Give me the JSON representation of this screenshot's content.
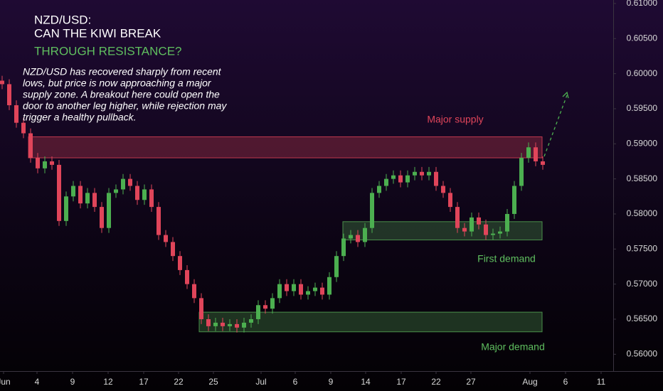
{
  "chart_data": {
    "type": "candlestick",
    "title": [
      "NZD/USD:",
      "CAN THE KIWI BREAK",
      "THROUGH RESISTANCE?"
    ],
    "description": [
      "NZD/USD has recovered sharply from recent",
      "lows, but price is now approaching a major",
      "supply zone. A breakout here could open the",
      "door to another leg higher, while rejection may",
      "trigger a healthy pullback."
    ],
    "up_color": "#4caf50",
    "down_color": "#e0455a",
    "open": [
      0.599,
      0.5985,
      0.5955,
      0.593,
      0.5915,
      0.588,
      0.5865,
      0.5875,
      0.587,
      0.579,
      0.5825,
      0.584,
      0.5815,
      0.583,
      0.581,
      0.578,
      0.583,
      0.5835,
      0.585,
      0.584,
      0.582,
      0.5835,
      0.581,
      0.577,
      0.576,
      0.574,
      0.572,
      0.57,
      0.568,
      0.565,
      0.564,
      0.5645,
      0.564,
      0.5643,
      0.5638,
      0.5645,
      0.565,
      0.567,
      0.5665,
      0.568,
      0.57,
      0.569,
      0.57,
      0.5685,
      0.569,
      0.5695,
      0.5685,
      0.571,
      0.574,
      0.5765,
      0.577,
      0.576,
      0.578,
      0.583,
      0.584,
      0.585,
      0.5855,
      0.5845,
      0.5855,
      0.586,
      0.5855,
      0.586,
      0.584,
      0.583,
      0.581,
      0.578,
      0.5775,
      0.5795,
      0.5785,
      0.577,
      0.5772,
      0.5775,
      0.58,
      0.584,
      0.588,
      0.5895,
      0.5875
    ],
    "high": [
      0.5997,
      0.5992,
      0.5962,
      0.5937,
      0.5922,
      0.5887,
      0.5882,
      0.5882,
      0.5877,
      0.5832,
      0.5847,
      0.5847,
      0.5837,
      0.5837,
      0.5817,
      0.5837,
      0.5842,
      0.5857,
      0.5857,
      0.5847,
      0.5842,
      0.5842,
      0.5817,
      0.5777,
      0.5767,
      0.5747,
      0.5727,
      0.5707,
      0.5687,
      0.5657,
      0.5652,
      0.5652,
      0.565,
      0.565,
      0.5652,
      0.5657,
      0.5677,
      0.5677,
      0.5687,
      0.5707,
      0.5707,
      0.5707,
      0.5707,
      0.5697,
      0.5702,
      0.5702,
      0.5717,
      0.5747,
      0.5772,
      0.5777,
      0.5777,
      0.5787,
      0.5837,
      0.5847,
      0.5857,
      0.5862,
      0.5862,
      0.5862,
      0.5867,
      0.5867,
      0.5867,
      0.5867,
      0.5847,
      0.5837,
      0.5817,
      0.5787,
      0.5802,
      0.5802,
      0.5792,
      0.5779,
      0.5782,
      0.5807,
      0.5847,
      0.5887,
      0.5902,
      0.5902,
      0.5882
    ],
    "low": [
      0.5978,
      0.5948,
      0.5923,
      0.5908,
      0.5873,
      0.5858,
      0.5858,
      0.5863,
      0.5783,
      0.5783,
      0.5818,
      0.5808,
      0.5808,
      0.5803,
      0.5773,
      0.5773,
      0.5823,
      0.5828,
      0.5833,
      0.5813,
      0.5813,
      0.5803,
      0.5763,
      0.5753,
      0.5733,
      0.5713,
      0.5693,
      0.5673,
      0.5643,
      0.5633,
      0.5633,
      0.5633,
      0.5633,
      0.5631,
      0.5631,
      0.5638,
      0.5643,
      0.5658,
      0.5658,
      0.5673,
      0.5683,
      0.5683,
      0.5678,
      0.5678,
      0.5683,
      0.5678,
      0.5678,
      0.5703,
      0.5733,
      0.5758,
      0.5753,
      0.5753,
      0.5773,
      0.5823,
      0.5833,
      0.5843,
      0.5838,
      0.5838,
      0.5848,
      0.5848,
      0.5848,
      0.5833,
      0.5823,
      0.5803,
      0.5773,
      0.5768,
      0.5768,
      0.5778,
      0.5763,
      0.5763,
      0.5765,
      0.5768,
      0.5793,
      0.5833,
      0.5873,
      0.5868,
      0.5863
    ],
    "close": [
      0.5985,
      0.5955,
      0.593,
      0.5915,
      0.588,
      0.5865,
      0.5875,
      0.587,
      0.579,
      0.5825,
      0.584,
      0.5815,
      0.583,
      0.581,
      0.578,
      0.583,
      0.5835,
      0.585,
      0.584,
      0.582,
      0.5835,
      0.581,
      0.577,
      0.576,
      0.574,
      0.572,
      0.57,
      0.568,
      0.565,
      0.564,
      0.5645,
      0.564,
      0.5643,
      0.5638,
      0.5645,
      0.565,
      0.567,
      0.5665,
      0.568,
      0.57,
      0.569,
      0.57,
      0.5685,
      0.569,
      0.5695,
      0.5685,
      0.571,
      0.574,
      0.5765,
      0.577,
      0.576,
      0.578,
      0.583,
      0.584,
      0.585,
      0.5855,
      0.5845,
      0.5855,
      0.586,
      0.5855,
      0.586,
      0.584,
      0.583,
      0.581,
      0.578,
      0.5775,
      0.5795,
      0.5785,
      0.577,
      0.5772,
      0.5775,
      0.58,
      0.584,
      0.588,
      0.5895,
      0.5875,
      0.587
    ],
    "zones": [
      {
        "label": "Major supply",
        "low": 0.588,
        "high": 0.591,
        "x_start": 3.7,
        "x_end": 75.9,
        "color": "#c0394f"
      },
      {
        "label": "First demand",
        "low": 0.5763,
        "high": 0.5789,
        "x_start": 47.9,
        "x_end": 75.9,
        "color": "#4a8f4a"
      },
      {
        "label": "Major demand",
        "low": 0.5632,
        "high": 0.566,
        "x_start": 27.7,
        "x_end": 75.9,
        "color": "#4a8f4a"
      }
    ],
    "ylim": [
      0.5576,
      0.6105
    ],
    "yticks": [
      {
        "value": 0.56,
        "label": "0.56000"
      },
      {
        "value": 0.565,
        "label": "0.56500"
      },
      {
        "value": 0.57,
        "label": "0.57000"
      },
      {
        "value": 0.575,
        "label": "0.57500"
      },
      {
        "value": 0.58,
        "label": "0.58000"
      },
      {
        "value": 0.585,
        "label": "0.58500"
      },
      {
        "value": 0.59,
        "label": "0.59000"
      },
      {
        "value": 0.595,
        "label": "0.59500"
      },
      {
        "value": 0.6,
        "label": "0.60000"
      },
      {
        "value": 0.605,
        "label": "0.60500"
      },
      {
        "value": 0.61,
        "label": "0.61000"
      }
    ],
    "xlim": [
      -0.3,
      85.9
    ],
    "xticks": [
      {
        "value": 0.2,
        "label": "Jun"
      },
      {
        "value": 4.9,
        "label": "4"
      },
      {
        "value": 9.9,
        "label": "9"
      },
      {
        "value": 14.9,
        "label": "12"
      },
      {
        "value": 19.9,
        "label": "17"
      },
      {
        "value": 24.8,
        "label": "22"
      },
      {
        "value": 29.7,
        "label": "25"
      },
      {
        "value": 36.4,
        "label": "Jul"
      },
      {
        "value": 41.2,
        "label": "6"
      },
      {
        "value": 46.2,
        "label": "9"
      },
      {
        "value": 51.1,
        "label": "14"
      },
      {
        "value": 56.1,
        "label": "17"
      },
      {
        "value": 61,
        "label": "22"
      },
      {
        "value": 65.9,
        "label": "27"
      },
      {
        "value": 74.2,
        "label": "Aug"
      },
      {
        "value": 79.2,
        "label": "6"
      },
      {
        "value": 84.2,
        "label": "11"
      }
    ]
  }
}
